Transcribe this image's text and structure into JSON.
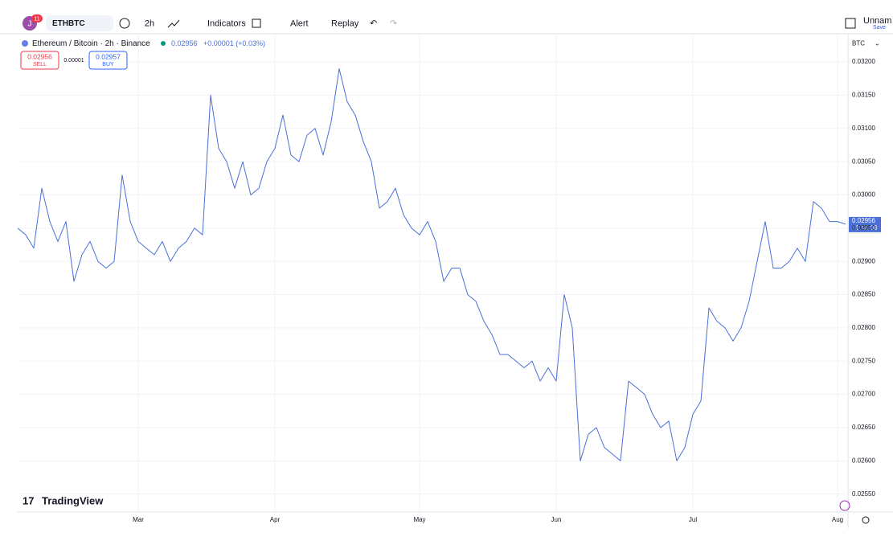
{
  "toolbar": {
    "avatar": "J",
    "badge": "11",
    "symbol": "ETHBTC",
    "interval": "2h",
    "indicators": "Indicators",
    "alert": "Alert",
    "replay": "Replay",
    "layout_name": "Unnam",
    "save": "Save"
  },
  "legend": {
    "price": "0.02956",
    "change": "+0.00001 (+0.03%)"
  },
  "trade": {
    "sell_price": "0.02956",
    "sell": "SELL",
    "spread": "0.00001",
    "buy_price": "0.02957",
    "buy": "BUY"
  },
  "price_axis": {
    "currency": "BTC",
    "last_price": "0.02956",
    "countdown": "01:16:08"
  },
  "logo": "TradingView",
  "chart_data": {
    "type": "line",
    "title": "Ethereum / Bitcoin · 2h · Binance",
    "color": "#4a6fd8",
    "categories": [
      null,
      null,
      null,
      null,
      null,
      null,
      null,
      null,
      null,
      null,
      null,
      null,
      null,
      null,
      null,
      "Mar",
      null,
      null,
      null,
      null,
      null,
      null,
      null,
      null,
      null,
      null,
      null,
      null,
      null,
      null,
      null,
      null,
      "Apr",
      null,
      null,
      null,
      null,
      null,
      null,
      null,
      null,
      null,
      null,
      null,
      null,
      null,
      null,
      null,
      null,
      null,
      "May",
      null,
      null,
      null,
      null,
      null,
      null,
      null,
      null,
      null,
      null,
      null,
      null,
      null,
      null,
      null,
      null,
      "Jun",
      null,
      null,
      null,
      null,
      null,
      null,
      null,
      null,
      null,
      null,
      null,
      null,
      null,
      null,
      null,
      null,
      "Jul",
      null,
      null,
      null,
      null,
      null,
      null,
      null,
      null,
      null,
      null,
      null,
      null,
      null,
      null,
      null,
      null,
      null,
      "Aug",
      null
    ],
    "values": [
      0.0295,
      0.0294,
      0.0292,
      0.0301,
      0.0296,
      0.0293,
      0.0296,
      0.0287,
      0.0291,
      0.0293,
      0.029,
      0.0289,
      0.029,
      0.0303,
      0.0296,
      0.0293,
      0.0292,
      0.0291,
      0.0293,
      0.029,
      0.0292,
      0.0293,
      0.0295,
      0.0294,
      0.0315,
      0.0307,
      0.0305,
      0.0301,
      0.0305,
      0.03,
      0.0301,
      0.0305,
      0.0307,
      0.0312,
      0.0306,
      0.0305,
      0.0309,
      0.031,
      0.0306,
      0.0311,
      0.0319,
      0.0314,
      0.0312,
      0.0308,
      0.0305,
      0.0298,
      0.0299,
      0.0301,
      0.0297,
      0.0295,
      0.0294,
      0.0296,
      0.0293,
      0.0287,
      0.0289,
      0.0289,
      0.0285,
      0.0284,
      0.0281,
      0.0279,
      0.0276,
      0.0276,
      0.0275,
      0.0274,
      0.0275,
      0.0272,
      0.0274,
      0.0272,
      0.0285,
      0.028,
      0.026,
      0.0264,
      0.0265,
      0.0262,
      0.0261,
      0.026,
      0.0272,
      0.0271,
      0.027,
      0.0267,
      0.0265,
      0.0266,
      0.026,
      0.0262,
      0.0267,
      0.0269,
      0.0283,
      0.0281,
      0.028,
      0.0278,
      0.028,
      0.0284,
      0.029,
      0.0296,
      0.0289,
      0.0289,
      0.029,
      0.0292,
      0.029,
      0.0299,
      0.0298,
      0.0296,
      0.0296,
      0.02956
    ],
    "ylim": [
      0.02523,
      0.0324
    ],
    "yticks": [
      {
        "value": 0.0255,
        "label": "0.02550"
      },
      {
        "value": 0.026,
        "label": "0.02600"
      },
      {
        "value": 0.0265,
        "label": "0.02650"
      },
      {
        "value": 0.027,
        "label": "0.02700"
      },
      {
        "value": 0.0275,
        "label": "0.02750"
      },
      {
        "value": 0.028,
        "label": "0.02800"
      },
      {
        "value": 0.0285,
        "label": "0.02850"
      },
      {
        "value": 0.029,
        "label": "0.02900"
      },
      {
        "value": 0.0295,
        "label": "0.02950"
      },
      {
        "value": 0.03,
        "label": "0.03000"
      },
      {
        "value": 0.0305,
        "label": "0.03050"
      },
      {
        "value": 0.031,
        "label": "0.03100"
      },
      {
        "value": 0.0315,
        "label": "0.03150"
      },
      {
        "value": 0.032,
        "label": "0.03200"
      }
    ],
    "grid": true
  }
}
